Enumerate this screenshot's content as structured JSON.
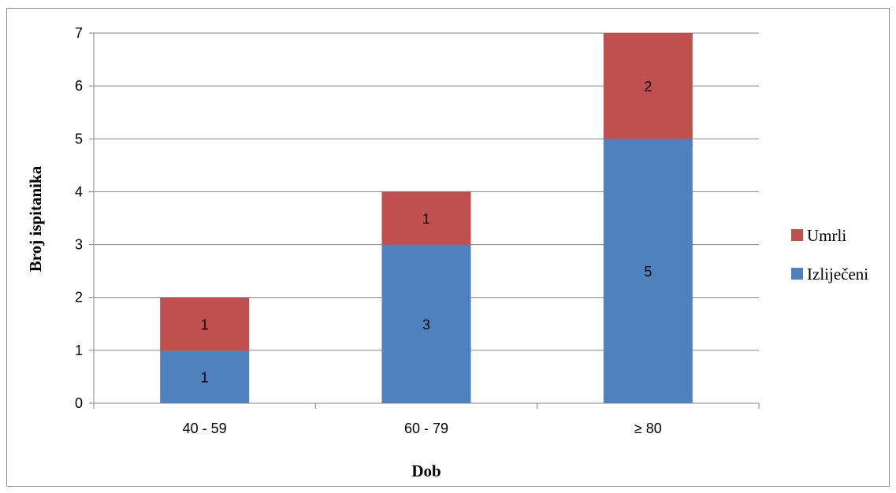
{
  "chart_data": {
    "type": "bar",
    "stacked": true,
    "categories": [
      "40 - 59",
      "60 - 79",
      "≥ 80"
    ],
    "series": [
      {
        "name": "Izliječeni",
        "values": [
          1,
          3,
          5
        ],
        "color": "#4f81bd"
      },
      {
        "name": "Umrli",
        "values": [
          1,
          1,
          2
        ],
        "color": "#c0504d"
      }
    ],
    "xlabel": "Dob",
    "ylabel": "Broj ispitanika",
    "ylim": [
      0,
      7
    ],
    "yticks": [
      "0",
      "1",
      "2",
      "3",
      "4",
      "5",
      "6",
      "7"
    ],
    "grid": true,
    "legend_position": "right",
    "legend_order": [
      "Umrli",
      "Izliječeni"
    ]
  }
}
